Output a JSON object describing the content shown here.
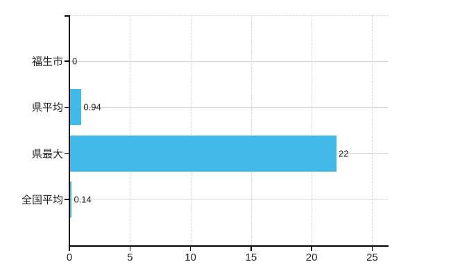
{
  "chart_data": {
    "type": "bar",
    "orientation": "horizontal",
    "title": "",
    "categories": [
      "福生市",
      "県平均",
      "県最大",
      "全国平均"
    ],
    "values": [
      0,
      0.94,
      22,
      0.14
    ],
    "value_labels": [
      "0",
      "0.94",
      "22",
      "0.14"
    ],
    "x_tick_values": [
      0,
      5,
      10,
      15,
      20,
      25
    ],
    "x_tick_labels": [
      "0",
      "5",
      "10",
      "15",
      "20",
      "25"
    ],
    "xlim": [
      0,
      26.35
    ],
    "grid": true,
    "legend": false,
    "xlabel": "",
    "ylabel": "",
    "colors": {
      "bar": "#42bae9",
      "axis": "#000000",
      "grid": "#d6d6d6",
      "text": "#222222"
    }
  }
}
